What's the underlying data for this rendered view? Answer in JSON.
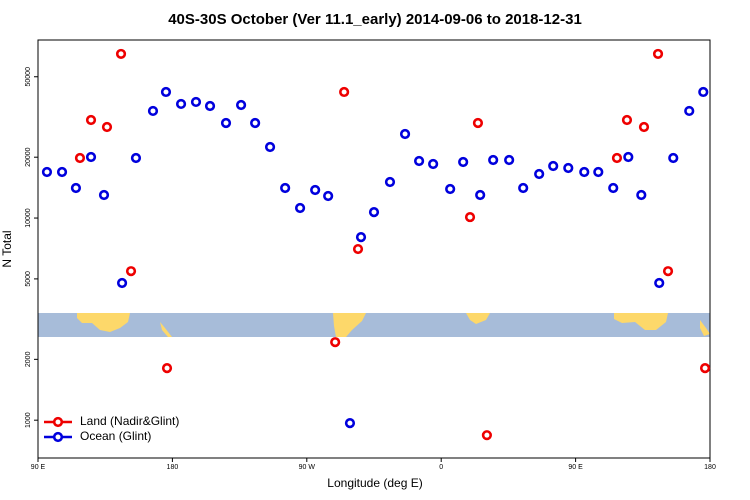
{
  "chart_data": {
    "type": "scatter",
    "title": "40S-30S October (Ver 11.1_early)   2014-09-06 to 2018-12-31",
    "x_label": "Longitude (deg E)",
    "y_label": "N Total",
    "xlim": [
      90,
      540
    ],
    "ylim": [
      650,
      76000
    ],
    "log_y": true,
    "legend": "bottom-left",
    "xticks": [
      {
        "value": 90,
        "label": "90 E"
      },
      {
        "value": 180,
        "label": "180"
      },
      {
        "value": 270,
        "label": "90 W"
      },
      {
        "value": 360,
        "label": "0"
      },
      {
        "value": 450,
        "label": "90 E"
      },
      {
        "value": 540,
        "label": "180"
      }
    ],
    "yticks": [
      1000,
      2000,
      5000,
      10000,
      20000,
      50000
    ],
    "series": [
      {
        "name": "Land (Nadir&Glint)",
        "color": "#ee0000",
        "x": [
          118.1,
          125.5,
          136.2,
          145.6,
          152.3,
          176.4,
          289,
          295,
          304.3,
          379.3,
          384.6,
          390.6,
          477.7,
          484.4,
          495.8,
          505.2,
          511.9,
          536.7
        ],
        "values": [
          19820,
          30560,
          28220,
          64860,
          5460,
          1809,
          2432,
          42050,
          7025,
          10110,
          29530,
          843,
          19820,
          30560,
          28220,
          64860,
          5460,
          1809
        ]
      },
      {
        "name": "Ocean (Glint)",
        "color": "#0000dd",
        "x": [
          96,
          106.1,
          115.4,
          125.5,
          134.2,
          146.3,
          155.6,
          167,
          175.7,
          185.8,
          195.8,
          205.2,
          215.9,
          226,
          235.4,
          245.4,
          255.5,
          265.5,
          275.6,
          284.3,
          298.9,
          306.3,
          315,
          325.7,
          335.8,
          345.2,
          354.6,
          366,
          374.7,
          386.1,
          394.8,
          405.5,
          414.9,
          425.6,
          435,
          445.1,
          455.8,
          465.2,
          475.2,
          485.3,
          494,
          506,
          515.4,
          526.1,
          535.5
        ],
        "values": [
          16900,
          16900,
          14080,
          20050,
          13000,
          4770,
          19820,
          33870,
          42050,
          36680,
          37530,
          35840,
          29530,
          36250,
          29530,
          22460,
          14080,
          11210,
          13760,
          12850,
          967,
          8050,
          10700,
          15080,
          26050,
          19150,
          18510,
          13920,
          18930,
          13000,
          19370,
          19370,
          14080,
          16510,
          18090,
          17680,
          16900,
          16900,
          14080,
          20050,
          13000,
          4770,
          19820,
          33870,
          42050
        ]
      }
    ]
  }
}
